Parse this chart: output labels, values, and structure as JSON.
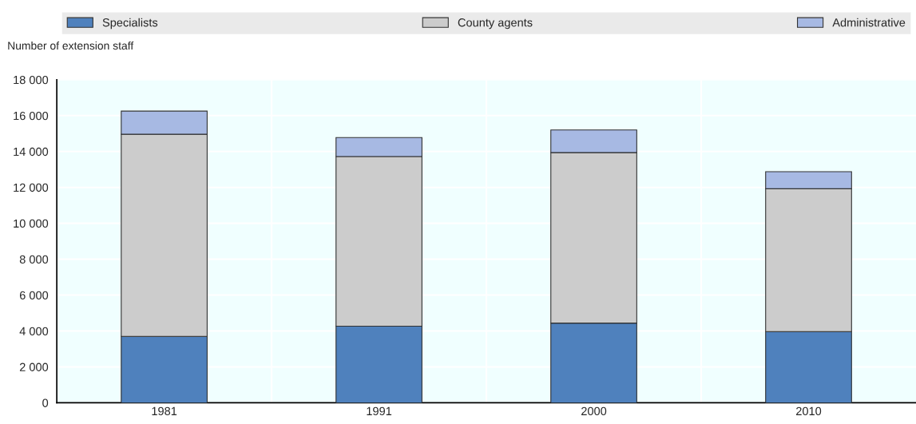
{
  "chart_data": {
    "type": "bar",
    "ylabel": "Number of extension staff",
    "categories": [
      "1981",
      "1991",
      "2000",
      "2010"
    ],
    "stacked": true,
    "series": [
      {
        "name": "Specialists",
        "color": "#4f81bd",
        "values": [
          3700,
          4270,
          4440,
          3970
        ]
      },
      {
        "name": "County agents",
        "color": "#cccccc",
        "values": [
          11260,
          9450,
          9500,
          7955
        ]
      },
      {
        "name": "Administrative",
        "color": "#a7b9e3",
        "values": [
          1290,
          1060,
          1260,
          950
        ]
      }
    ],
    "ylim": [
      0,
      18000
    ],
    "yticks": [
      {
        "value": 0,
        "label": "0"
      },
      {
        "value": 2000,
        "label": "2 000"
      },
      {
        "value": 4000,
        "label": "4 000"
      },
      {
        "value": 6000,
        "label": "6 000"
      },
      {
        "value": 8000,
        "label": "8 000"
      },
      {
        "value": 10000,
        "label": "10 000"
      },
      {
        "value": 12000,
        "label": "12 000"
      },
      {
        "value": 14000,
        "label": "14 000"
      },
      {
        "value": 16000,
        "label": "16 000"
      },
      {
        "value": 18000,
        "label": "18 000"
      }
    ],
    "grid": true,
    "legend": "top"
  }
}
